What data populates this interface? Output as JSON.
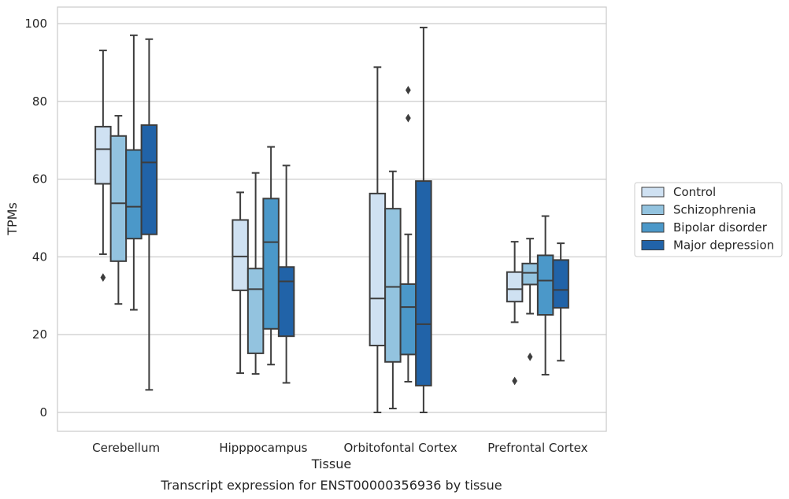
{
  "chart_data": {
    "type": "box",
    "title": "",
    "caption": "Transcript expression for ENST00000356936 by tissue",
    "xlabel": "Tissue",
    "ylabel": "TPMs",
    "ylim": [
      -5,
      104
    ],
    "yticks": [
      0,
      20,
      40,
      60,
      80,
      100
    ],
    "grid": "horizontal",
    "legend_position": "right",
    "categories": [
      "Cerebellum",
      "Hipppocampus",
      "Orbitofontal Cortex",
      "Prefrontal Cortex"
    ],
    "series": [
      {
        "name": "Control",
        "color": "#cfe1f2",
        "boxes": [
          {
            "whislo": 40.7,
            "q1": 58.8,
            "med": 67.7,
            "q3": 73.5,
            "whishi": 93.1,
            "fliers": [
              34.7
            ]
          },
          {
            "whislo": 10.1,
            "q1": 31.4,
            "med": 40.1,
            "q3": 49.5,
            "whishi": 56.6,
            "fliers": []
          },
          {
            "whislo": 0.0,
            "q1": 17.2,
            "med": 29.3,
            "q3": 56.3,
            "whishi": 88.8,
            "fliers": []
          },
          {
            "whislo": 23.2,
            "q1": 28.5,
            "med": 31.7,
            "q3": 36.1,
            "whishi": 43.9,
            "fliers": [
              8.1
            ]
          }
        ]
      },
      {
        "name": "Schizophrenia",
        "color": "#93c3df",
        "boxes": [
          {
            "whislo": 27.9,
            "q1": 38.9,
            "med": 53.8,
            "q3": 71.1,
            "whishi": 76.3,
            "fliers": []
          },
          {
            "whislo": 9.9,
            "q1": 15.2,
            "med": 31.7,
            "q3": 37.0,
            "whishi": 61.6,
            "fliers": []
          },
          {
            "whislo": 1.0,
            "q1": 13.0,
            "med": 32.3,
            "q3": 52.4,
            "whishi": 62.0,
            "fliers": []
          },
          {
            "whislo": 25.4,
            "q1": 32.9,
            "med": 35.9,
            "q3": 38.3,
            "whishi": 44.7,
            "fliers": [
              14.3
            ]
          }
        ]
      },
      {
        "name": "Bipolar disorder",
        "color": "#4b98c9",
        "boxes": [
          {
            "whislo": 26.4,
            "q1": 44.7,
            "med": 52.9,
            "q3": 67.5,
            "whishi": 97.0,
            "fliers": []
          },
          {
            "whislo": 12.3,
            "q1": 21.5,
            "med": 43.8,
            "q3": 55.0,
            "whishi": 68.3,
            "fliers": []
          },
          {
            "whislo": 7.9,
            "q1": 14.9,
            "med": 27.1,
            "q3": 33.0,
            "whishi": 45.8,
            "fliers": [
              75.7,
              82.9
            ]
          },
          {
            "whislo": 9.7,
            "q1": 25.1,
            "med": 33.9,
            "q3": 40.4,
            "whishi": 50.5,
            "fliers": []
          }
        ]
      },
      {
        "name": "Major depression",
        "color": "#2163a8",
        "boxes": [
          {
            "whislo": 5.8,
            "q1": 45.8,
            "med": 64.3,
            "q3": 73.9,
            "whishi": 96.0,
            "fliers": []
          },
          {
            "whislo": 7.6,
            "q1": 19.6,
            "med": 33.7,
            "q3": 37.4,
            "whishi": 63.5,
            "fliers": []
          },
          {
            "whislo": 0.0,
            "q1": 6.9,
            "med": 22.7,
            "q3": 59.5,
            "whishi": 99.0,
            "fliers": []
          },
          {
            "whislo": 13.3,
            "q1": 26.9,
            "med": 31.5,
            "q3": 39.2,
            "whishi": 43.5,
            "fliers": []
          }
        ]
      }
    ]
  }
}
